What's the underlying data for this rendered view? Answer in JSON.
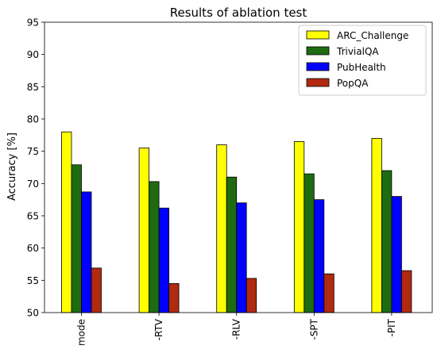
{
  "chart_data": {
    "type": "bar",
    "title": "Results of ablation test",
    "xlabel": "",
    "ylabel": "Accuracy [%]",
    "ylim": [
      50,
      95
    ],
    "yticks": [
      50,
      55,
      60,
      65,
      70,
      75,
      80,
      85,
      90,
      95
    ],
    "categories": [
      "mode",
      "-RTV",
      "-RLV",
      "-SPT",
      "-PIT"
    ],
    "series": [
      {
        "name": "ARC_Challenge",
        "color": "#ffff00",
        "values": [
          78.0,
          75.5,
          76.0,
          76.5,
          77.0
        ]
      },
      {
        "name": "TrivialQA",
        "color": "#1e6b12",
        "values": [
          72.9,
          70.3,
          71.0,
          71.5,
          72.0
        ]
      },
      {
        "name": "PubHealth",
        "color": "#0000ff",
        "values": [
          68.7,
          66.2,
          67.0,
          67.5,
          68.0
        ]
      },
      {
        "name": "PopQA",
        "color": "#b02a10",
        "values": [
          56.9,
          54.5,
          55.3,
          56.0,
          56.5
        ]
      }
    ],
    "legend": "top-right",
    "grid": false
  }
}
